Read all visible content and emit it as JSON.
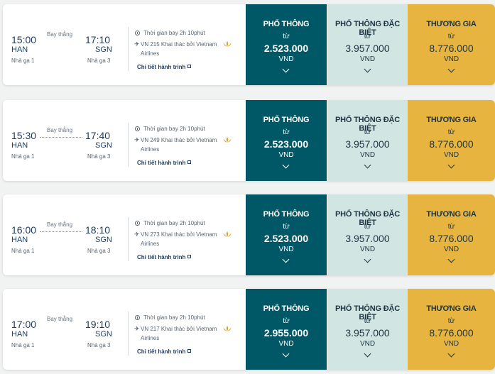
{
  "flights": [
    {
      "dep_time": "15:00",
      "dep_code": "HAN",
      "dep_terminal": "Nhà ga 1",
      "route_label": "Bay thẳng",
      "arr_time": "17:10",
      "arr_code": "SGN",
      "arr_terminal": "Nhà ga 3",
      "duration": "Thời gian bay 2h 10phút",
      "flight_line1": "VN 215 Khai thác bởi Vietnam",
      "flight_line2": "Airlines",
      "details": "Chi tiết hành trình",
      "fares": [
        {
          "name": "PHỔ THÔNG",
          "from": "từ",
          "price": "2.523.000",
          "currency": "VND"
        },
        {
          "name": "PHỔ THÔNG ĐẶC BIỆT",
          "from": "từ",
          "price": "3.957.000",
          "currency": "VND"
        },
        {
          "name": "THƯƠNG GIA",
          "from": "từ",
          "price": "8.776.000",
          "currency": "VND"
        }
      ]
    },
    {
      "dep_time": "15:30",
      "dep_code": "HAN",
      "dep_terminal": "Nhà ga 1",
      "route_label": "Bay thẳng",
      "arr_time": "17:40",
      "arr_code": "SGN",
      "arr_terminal": "Nhà ga 3",
      "duration": "Thời gian bay 2h 10phút",
      "flight_line1": "VN 249 Khai thác bởi Vietnam",
      "flight_line2": "Airlines",
      "details": "Chi tiết hành trình",
      "fares": [
        {
          "name": "PHỔ THÔNG",
          "from": "từ",
          "price": "2.523.000",
          "currency": "VND"
        },
        {
          "name": "PHỔ THÔNG ĐẶC BIỆT",
          "from": "từ",
          "price": "3.957.000",
          "currency": "VND"
        },
        {
          "name": "THƯƠNG GIA",
          "from": "từ",
          "price": "8.776.000",
          "currency": "VND"
        }
      ]
    },
    {
      "dep_time": "16:00",
      "dep_code": "HAN",
      "dep_terminal": "Nhà ga 1",
      "route_label": "Bay thẳng",
      "arr_time": "18:10",
      "arr_code": "SGN",
      "arr_terminal": "Nhà ga 3",
      "duration": "Thời gian bay 2h 10phút",
      "flight_line1": "VN 273 Khai thác bởi Vietnam",
      "flight_line2": "Airlines",
      "details": "Chi tiết hành trình",
      "fares": [
        {
          "name": "PHỔ THÔNG",
          "from": "từ",
          "price": "2.523.000",
          "currency": "VND"
        },
        {
          "name": "PHỔ THÔNG ĐẶC BIỆT",
          "from": "từ",
          "price": "3.957.000",
          "currency": "VND"
        },
        {
          "name": "THƯƠNG GIA",
          "from": "từ",
          "price": "8.776.000",
          "currency": "VND"
        }
      ]
    },
    {
      "dep_time": "17:00",
      "dep_code": "HAN",
      "dep_terminal": "Nhà ga 1",
      "route_label": "Bay thẳng",
      "arr_time": "19:10",
      "arr_code": "SGN",
      "arr_terminal": "Nhà ga 3",
      "duration": "Thời gian bay 2h 10phút",
      "flight_line1": "VN 217 Khai thác bởi Vietnam",
      "flight_line2": "Airlines",
      "details": "Chi tiết hành trình",
      "fares": [
        {
          "name": "PHỔ THÔNG",
          "from": "từ",
          "price": "2.955.000",
          "currency": "VND"
        },
        {
          "name": "PHỔ THÔNG ĐẶC BIỆT",
          "from": "từ",
          "price": "3.957.000",
          "currency": "VND"
        },
        {
          "name": "THƯƠNG GIA",
          "from": "từ",
          "price": "8.776.000",
          "currency": "VND"
        }
      ]
    }
  ],
  "colors": {
    "economy": "#005867",
    "premium_economy": "#d1e5e2",
    "business": "#e6b43f"
  }
}
